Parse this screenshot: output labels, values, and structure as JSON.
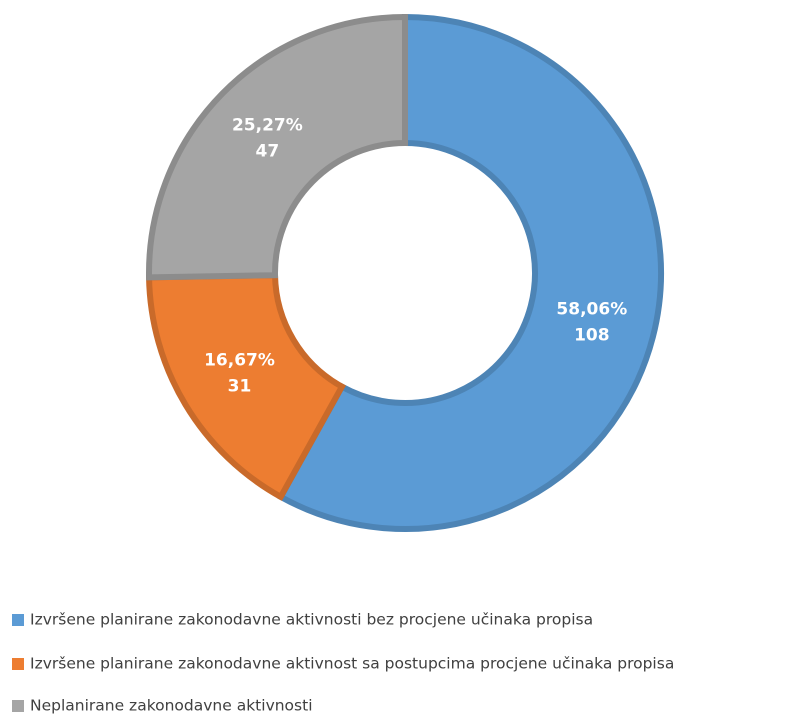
{
  "chart_data": {
    "type": "donut",
    "categories": [
      "Izvršene planirane zakonodavne aktivnosti bez procjene učinaka propisa",
      "Izvršene planirane zakonodavne aktivnost sa postupcima procjene učinaka propisa",
      "Neplanirane zakonodavne aktivnosti"
    ],
    "values": [
      108,
      31,
      47
    ],
    "percent_labels": [
      "58,06%",
      "16,67%",
      "25,27%"
    ],
    "colors": [
      "#5b9bd5",
      "#ed7d31",
      "#a5a5a5"
    ],
    "legend": "bottom"
  }
}
